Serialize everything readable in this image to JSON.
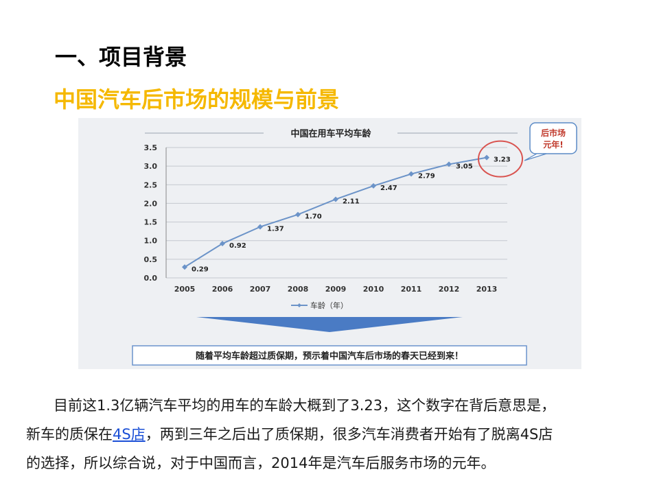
{
  "slide": {
    "heading": "一、项目背景",
    "subheading": "中国汽车后市场的规模与前景"
  },
  "chart_data": {
    "type": "line",
    "title": "中国在用车平均车龄",
    "categories": [
      "2005",
      "2006",
      "2007",
      "2008",
      "2009",
      "2010",
      "2011",
      "2012",
      "2013"
    ],
    "series": [
      {
        "name": "车龄（年）",
        "values": [
          0.29,
          0.92,
          1.37,
          1.7,
          2.11,
          2.47,
          2.79,
          3.05,
          3.23
        ]
      }
    ],
    "data_labels": [
      "0.29",
      "0.92",
      "1.37",
      "1.70",
      "2.11",
      "2.47",
      "2.79",
      "3.05",
      "3.23"
    ],
    "ylim": [
      0,
      3.5
    ],
    "yticks": [
      "3.5",
      "3.0",
      "2.5",
      "2.0",
      "1.5",
      "1.0",
      "0.5",
      "0.0"
    ],
    "grid": true,
    "legend_position": "bottom",
    "callout": "后市场\n元年!",
    "banner": "随着平均车龄超过质保期，预示着中国汽车后市场的春天已经到来！",
    "colors": {
      "line": "#6b93c8",
      "callout_circle": "#d9534f",
      "arrow": "#4a7bc4"
    }
  },
  "paragraph": {
    "line1": "目前这1.3亿辆汽车平均的用车的车龄大概到了3.23，这个数字在背后意思是，",
    "line2_pre": "新车的质保在",
    "line2_link": "4S店",
    "line2_post": "，两到三年之后出了质保期，很多汽车消费者开始有了脱离4S店",
    "line3": "的选择，所以综合说，对于中国而言，2014年是汽车后服务市场的元年。"
  }
}
